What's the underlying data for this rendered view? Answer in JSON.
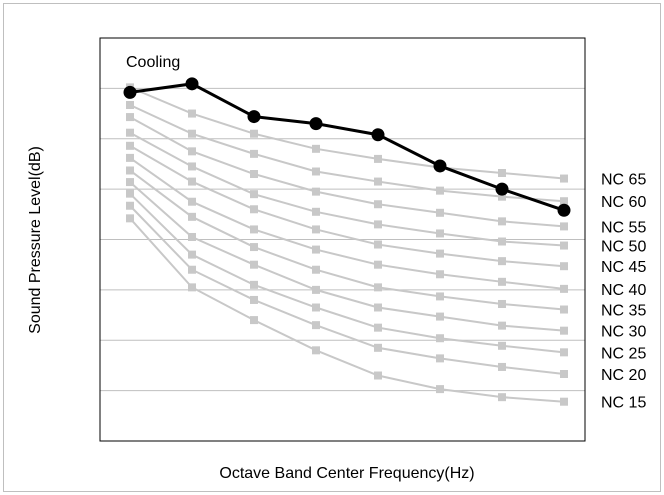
{
  "chart_data": {
    "type": "line",
    "xlabel": "Octave Band Center Frequency(Hz)",
    "ylabel": "Sound Pressure Level(dB)",
    "x_points": 8,
    "ylim": [
      10,
      90
    ],
    "grid": "horizontal",
    "nc_curves": [
      {
        "name": "NC 65",
        "values": [
          80.2,
          75.0,
          71.0,
          68.0,
          66.0,
          64.3,
          63.2,
          62.1
        ]
      },
      {
        "name": "NC 60",
        "values": [
          76.7,
          71.0,
          67.0,
          63.5,
          61.5,
          59.7,
          58.5,
          57.6
        ]
      },
      {
        "name": "NC 55",
        "values": [
          74.3,
          67.5,
          63.0,
          59.5,
          57.0,
          55.3,
          53.6,
          52.6
        ]
      },
      {
        "name": "NC 50",
        "values": [
          71.2,
          64.5,
          59.0,
          55.5,
          53.0,
          51.2,
          49.6,
          48.8
        ]
      },
      {
        "name": "NC 45",
        "values": [
          68.6,
          61.5,
          56.0,
          52.0,
          49.0,
          47.2,
          45.7,
          44.7
        ]
      },
      {
        "name": "NC 40",
        "values": [
          66.2,
          57.5,
          52.0,
          48.0,
          45.0,
          43.1,
          41.6,
          40.2
        ]
      },
      {
        "name": "NC 35",
        "values": [
          63.7,
          54.5,
          48.5,
          44.0,
          40.5,
          38.7,
          37.2,
          36.1
        ]
      },
      {
        "name": "NC 30",
        "values": [
          61.4,
          50.5,
          45.0,
          40.0,
          36.5,
          34.7,
          32.9,
          31.9
        ]
      },
      {
        "name": "NC 25",
        "values": [
          59.1,
          47.0,
          41.0,
          36.5,
          32.5,
          30.4,
          28.9,
          27.6
        ]
      },
      {
        "name": "NC 20",
        "values": [
          56.7,
          44.0,
          38.0,
          33.0,
          28.5,
          26.4,
          24.7,
          23.3
        ]
      },
      {
        "name": "NC 15",
        "values": [
          54.2,
          40.5,
          34.0,
          28.0,
          23.0,
          20.3,
          18.7,
          17.8
        ]
      }
    ],
    "series": [
      {
        "name": "Cooling",
        "values": [
          79.2,
          80.9,
          74.4,
          73.0,
          70.8,
          64.6,
          60.0,
          55.8
        ]
      }
    ],
    "colors": {
      "nc": "#c8c8c8",
      "cooling": "#000000",
      "grid": "#bfbfbf",
      "axis": "#000000"
    }
  }
}
